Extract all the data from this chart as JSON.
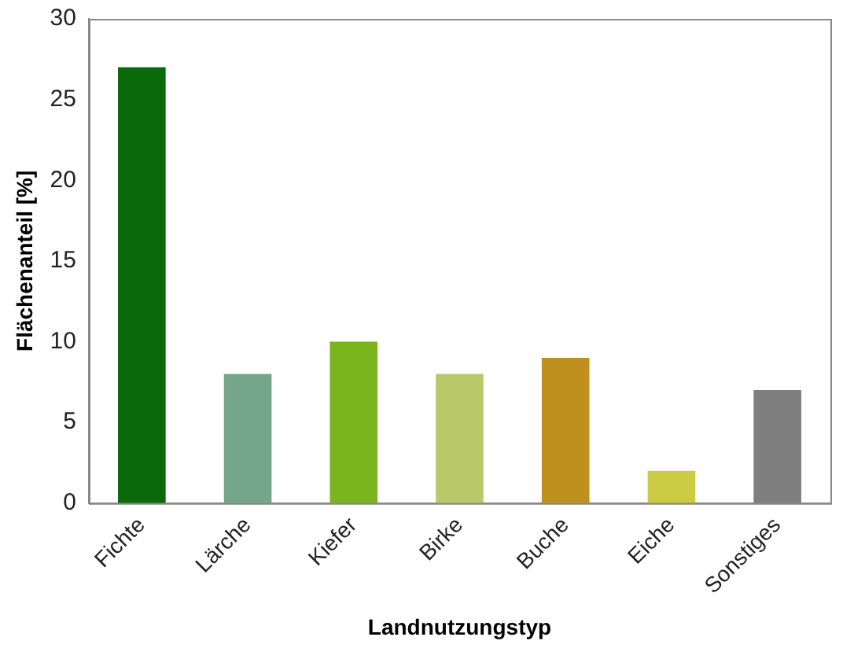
{
  "chart_data": {
    "type": "bar",
    "xlabel": "Landnutzungstyp",
    "ylabel": "Flächenanteil [%]",
    "categories": [
      "Fichte",
      "Lärche",
      "Kiefer",
      "Birke",
      "Buche",
      "Eiche",
      "Sonstiges"
    ],
    "values": [
      27,
      8,
      10,
      8,
      9,
      2,
      7
    ],
    "colors": [
      "#0a6a0a",
      "#76a68a",
      "#7ab51d",
      "#b9c96a",
      "#c0901e",
      "#cccc44",
      "#7f7f7f"
    ],
    "ylim": [
      0,
      30
    ],
    "yticks": [
      0,
      5,
      10,
      15,
      20,
      25,
      30
    ],
    "grid": false,
    "legend": false
  }
}
